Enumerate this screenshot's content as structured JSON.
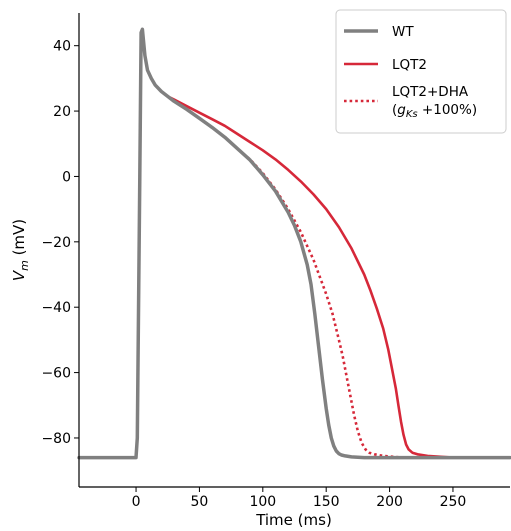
{
  "chart_data": {
    "type": "line",
    "title": "",
    "xlabel": "Time (ms)",
    "ylabel_main": "V",
    "ylabel_sub": "m",
    "ylabel_unit": " (mV)",
    "xlim": [
      -45,
      295
    ],
    "ylim": [
      -95,
      50
    ],
    "xticks": [
      0,
      50,
      100,
      150,
      200,
      250
    ],
    "yticks": [
      -80,
      -60,
      -40,
      -20,
      0,
      20,
      40
    ],
    "xtick_labels": [
      "0",
      "50",
      "100",
      "150",
      "200",
      "250"
    ],
    "ytick_labels": [
      "−80",
      "−60",
      "−40",
      "−20",
      "0",
      "20",
      "40"
    ],
    "grid": false,
    "legend_position": "top-right",
    "series": [
      {
        "name": "WT",
        "color": "#808080",
        "style": "solid",
        "x": [
          -45,
          0,
          1,
          3,
          4,
          5,
          7,
          9,
          12,
          15,
          20,
          25,
          30,
          40,
          50,
          60,
          70,
          80,
          90,
          100,
          110,
          120,
          125,
          130,
          135,
          138,
          141,
          144,
          147,
          150,
          152,
          154,
          156,
          158,
          160,
          162,
          165,
          170,
          180,
          200,
          240,
          295
        ],
        "y": [
          -86,
          -86,
          -80,
          0,
          44,
          45,
          37,
          32.5,
          30,
          28,
          26,
          24.5,
          23,
          20.5,
          17.8,
          15,
          12,
          8.5,
          5,
          0.5,
          -4.5,
          -11,
          -15,
          -20,
          -27,
          -33,
          -42,
          -52,
          -62,
          -71,
          -76,
          -80,
          -82.5,
          -84,
          -84.8,
          -85.2,
          -85.5,
          -85.8,
          -86,
          -86,
          -86,
          -86
        ]
      },
      {
        "name": "LQT2",
        "color": "#d62839",
        "style": "solid",
        "x": [
          -45,
          0,
          1,
          3,
          4,
          5,
          7,
          9,
          12,
          15,
          20,
          25,
          30,
          40,
          50,
          60,
          70,
          80,
          90,
          100,
          110,
          120,
          130,
          140,
          150,
          160,
          170,
          180,
          185,
          190,
          195,
          199,
          202,
          205,
          207,
          209,
          211,
          213,
          215,
          218,
          222,
          230,
          250,
          295
        ],
        "y": [
          -86,
          -86,
          -80,
          0,
          44,
          45,
          37,
          32.5,
          30,
          28,
          26,
          24.5,
          23.5,
          21.5,
          19.5,
          17.5,
          15.5,
          13,
          10.5,
          8,
          5.2,
          2,
          -1.5,
          -5.5,
          -10,
          -15.5,
          -22,
          -30,
          -35,
          -40.5,
          -46.5,
          -53,
          -59,
          -65,
          -70,
          -75,
          -79,
          -82,
          -83.5,
          -84.5,
          -85,
          -85.5,
          -86,
          -86
        ]
      },
      {
        "name": "LQT2+DHA",
        "name_line2": "(g",
        "name_sub": "Ks",
        "name_line2_end": " +100%)",
        "color": "#d62839",
        "style": "dotted",
        "x": [
          -45,
          0,
          1,
          3,
          4,
          5,
          7,
          9,
          12,
          15,
          20,
          25,
          30,
          40,
          50,
          60,
          70,
          80,
          90,
          100,
          110,
          120,
          130,
          140,
          150,
          155,
          160,
          163,
          166,
          169,
          172,
          175,
          178,
          181,
          184,
          188,
          195,
          210,
          240,
          295
        ],
        "y": [
          -86,
          -86,
          -80,
          0,
          44,
          45,
          37,
          32.5,
          30,
          28,
          26,
          24.5,
          23,
          20.5,
          17.8,
          15,
          12,
          8.5,
          5.2,
          1,
          -4,
          -10,
          -17,
          -25.5,
          -36,
          -42,
          -50,
          -55,
          -61,
          -67,
          -73,
          -78,
          -81.5,
          -83.5,
          -84.5,
          -85,
          -85.5,
          -86,
          -86,
          -86
        ]
      }
    ]
  }
}
